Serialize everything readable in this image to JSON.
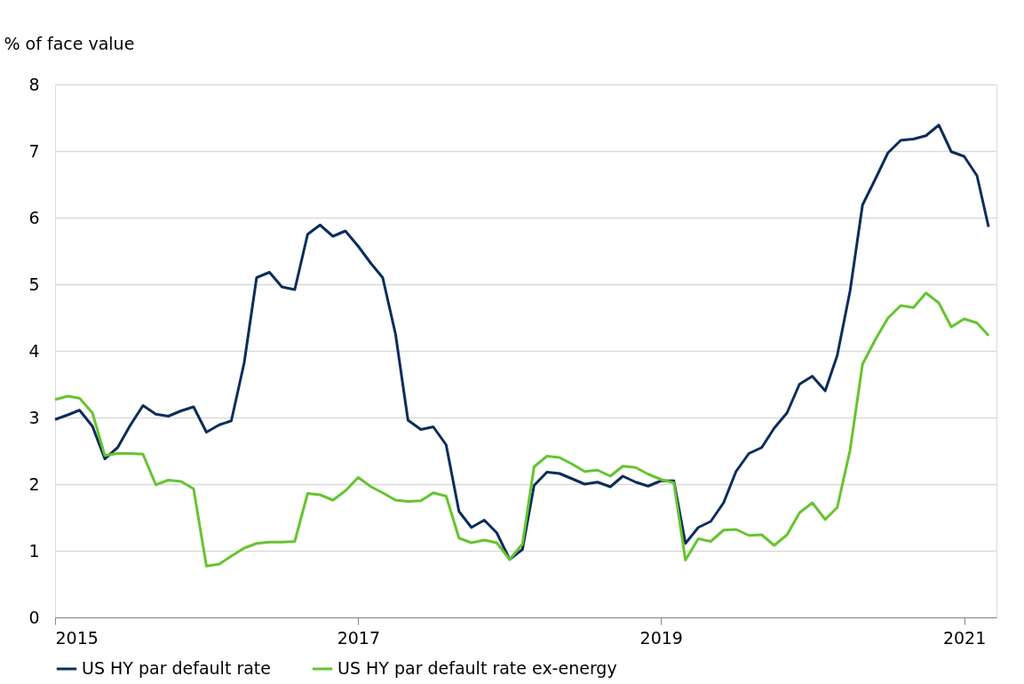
{
  "chart_data": {
    "type": "line",
    "ylabel": "% of face value",
    "x": [
      "2015-01",
      "2015-02",
      "2015-03",
      "2015-04",
      "2015-05",
      "2015-06",
      "2015-07",
      "2015-08",
      "2015-09",
      "2015-10",
      "2015-11",
      "2015-12",
      "2016-01",
      "2016-02",
      "2016-03",
      "2016-04",
      "2016-05",
      "2016-06",
      "2016-07",
      "2016-08",
      "2016-09",
      "2016-10",
      "2016-11",
      "2016-12",
      "2017-01",
      "2017-02",
      "2017-03",
      "2017-04",
      "2017-05",
      "2017-06",
      "2017-07",
      "2017-08",
      "2017-09",
      "2017-10",
      "2017-11",
      "2017-12",
      "2018-01",
      "2018-02",
      "2018-03",
      "2018-04",
      "2018-05",
      "2018-06",
      "2018-07",
      "2018-08",
      "2018-09",
      "2018-10",
      "2018-11",
      "2018-12",
      "2019-01",
      "2019-02",
      "2019-03",
      "2019-04",
      "2019-05",
      "2019-06",
      "2019-07",
      "2019-08",
      "2019-09",
      "2019-10",
      "2019-11",
      "2019-12",
      "2020-01",
      "2020-02",
      "2020-03",
      "2020-04",
      "2020-05",
      "2020-06",
      "2020-07",
      "2020-08",
      "2020-09",
      "2020-10",
      "2020-11",
      "2020-12",
      "2021-01",
      "2021-02",
      "2021-03"
    ],
    "series": [
      {
        "name": "US HY par default rate",
        "color": "#0b2d5b",
        "values": [
          2.97,
          3.04,
          3.11,
          2.87,
          2.38,
          2.55,
          2.88,
          3.18,
          3.05,
          3.02,
          3.1,
          3.16,
          2.78,
          2.89,
          2.95,
          3.82,
          5.1,
          5.18,
          4.96,
          4.92,
          5.75,
          5.89,
          5.72,
          5.8,
          5.57,
          5.31,
          5.1,
          4.25,
          2.96,
          2.82,
          2.86,
          2.59,
          1.59,
          1.35,
          1.46,
          1.27,
          0.87,
          1.02,
          1.98,
          2.18,
          2.16,
          2.08,
          2.0,
          2.03,
          1.96,
          2.12,
          2.03,
          1.97,
          2.05,
          2.05,
          1.11,
          1.35,
          1.44,
          1.72,
          2.19,
          2.46,
          2.55,
          2.84,
          3.07,
          3.5,
          3.62,
          3.4,
          3.93,
          4.9,
          6.19,
          6.58,
          6.97,
          7.16,
          7.18,
          7.23,
          7.39,
          6.99,
          6.92,
          6.63,
          5.86
        ]
      },
      {
        "name": "US HY par default rate ex-energy",
        "color": "#66c430",
        "values": [
          3.27,
          3.32,
          3.29,
          3.07,
          2.43,
          2.46,
          2.46,
          2.45,
          1.99,
          2.06,
          2.04,
          1.93,
          0.77,
          0.8,
          0.92,
          1.04,
          1.11,
          1.13,
          1.13,
          1.14,
          1.86,
          1.84,
          1.76,
          1.9,
          2.1,
          1.96,
          1.87,
          1.76,
          1.74,
          1.75,
          1.87,
          1.82,
          1.19,
          1.12,
          1.16,
          1.12,
          0.87,
          1.1,
          2.26,
          2.42,
          2.4,
          2.3,
          2.19,
          2.21,
          2.12,
          2.27,
          2.25,
          2.15,
          2.07,
          2.02,
          0.86,
          1.18,
          1.14,
          1.31,
          1.32,
          1.23,
          1.24,
          1.08,
          1.24,
          1.57,
          1.72,
          1.47,
          1.65,
          2.51,
          3.8,
          4.17,
          4.49,
          4.68,
          4.65,
          4.87,
          4.72,
          4.36,
          4.48,
          4.42,
          4.23
        ]
      }
    ],
    "xlim": [
      "2015-01-01",
      "2021-03-20"
    ],
    "xticks": [
      {
        "value": "2015-01-01",
        "label": "2015"
      },
      {
        "value": "2017-01-01",
        "label": "2017"
      },
      {
        "value": "2019-01-01",
        "label": "2019"
      },
      {
        "value": "2021-01-01",
        "label": "2021"
      }
    ],
    "ylim": [
      0,
      8
    ],
    "yticks": [
      0,
      1,
      2,
      3,
      4,
      5,
      6,
      7,
      8
    ],
    "grid": "y",
    "legend": "bottom",
    "marker": "none",
    "line_style": "solid"
  }
}
